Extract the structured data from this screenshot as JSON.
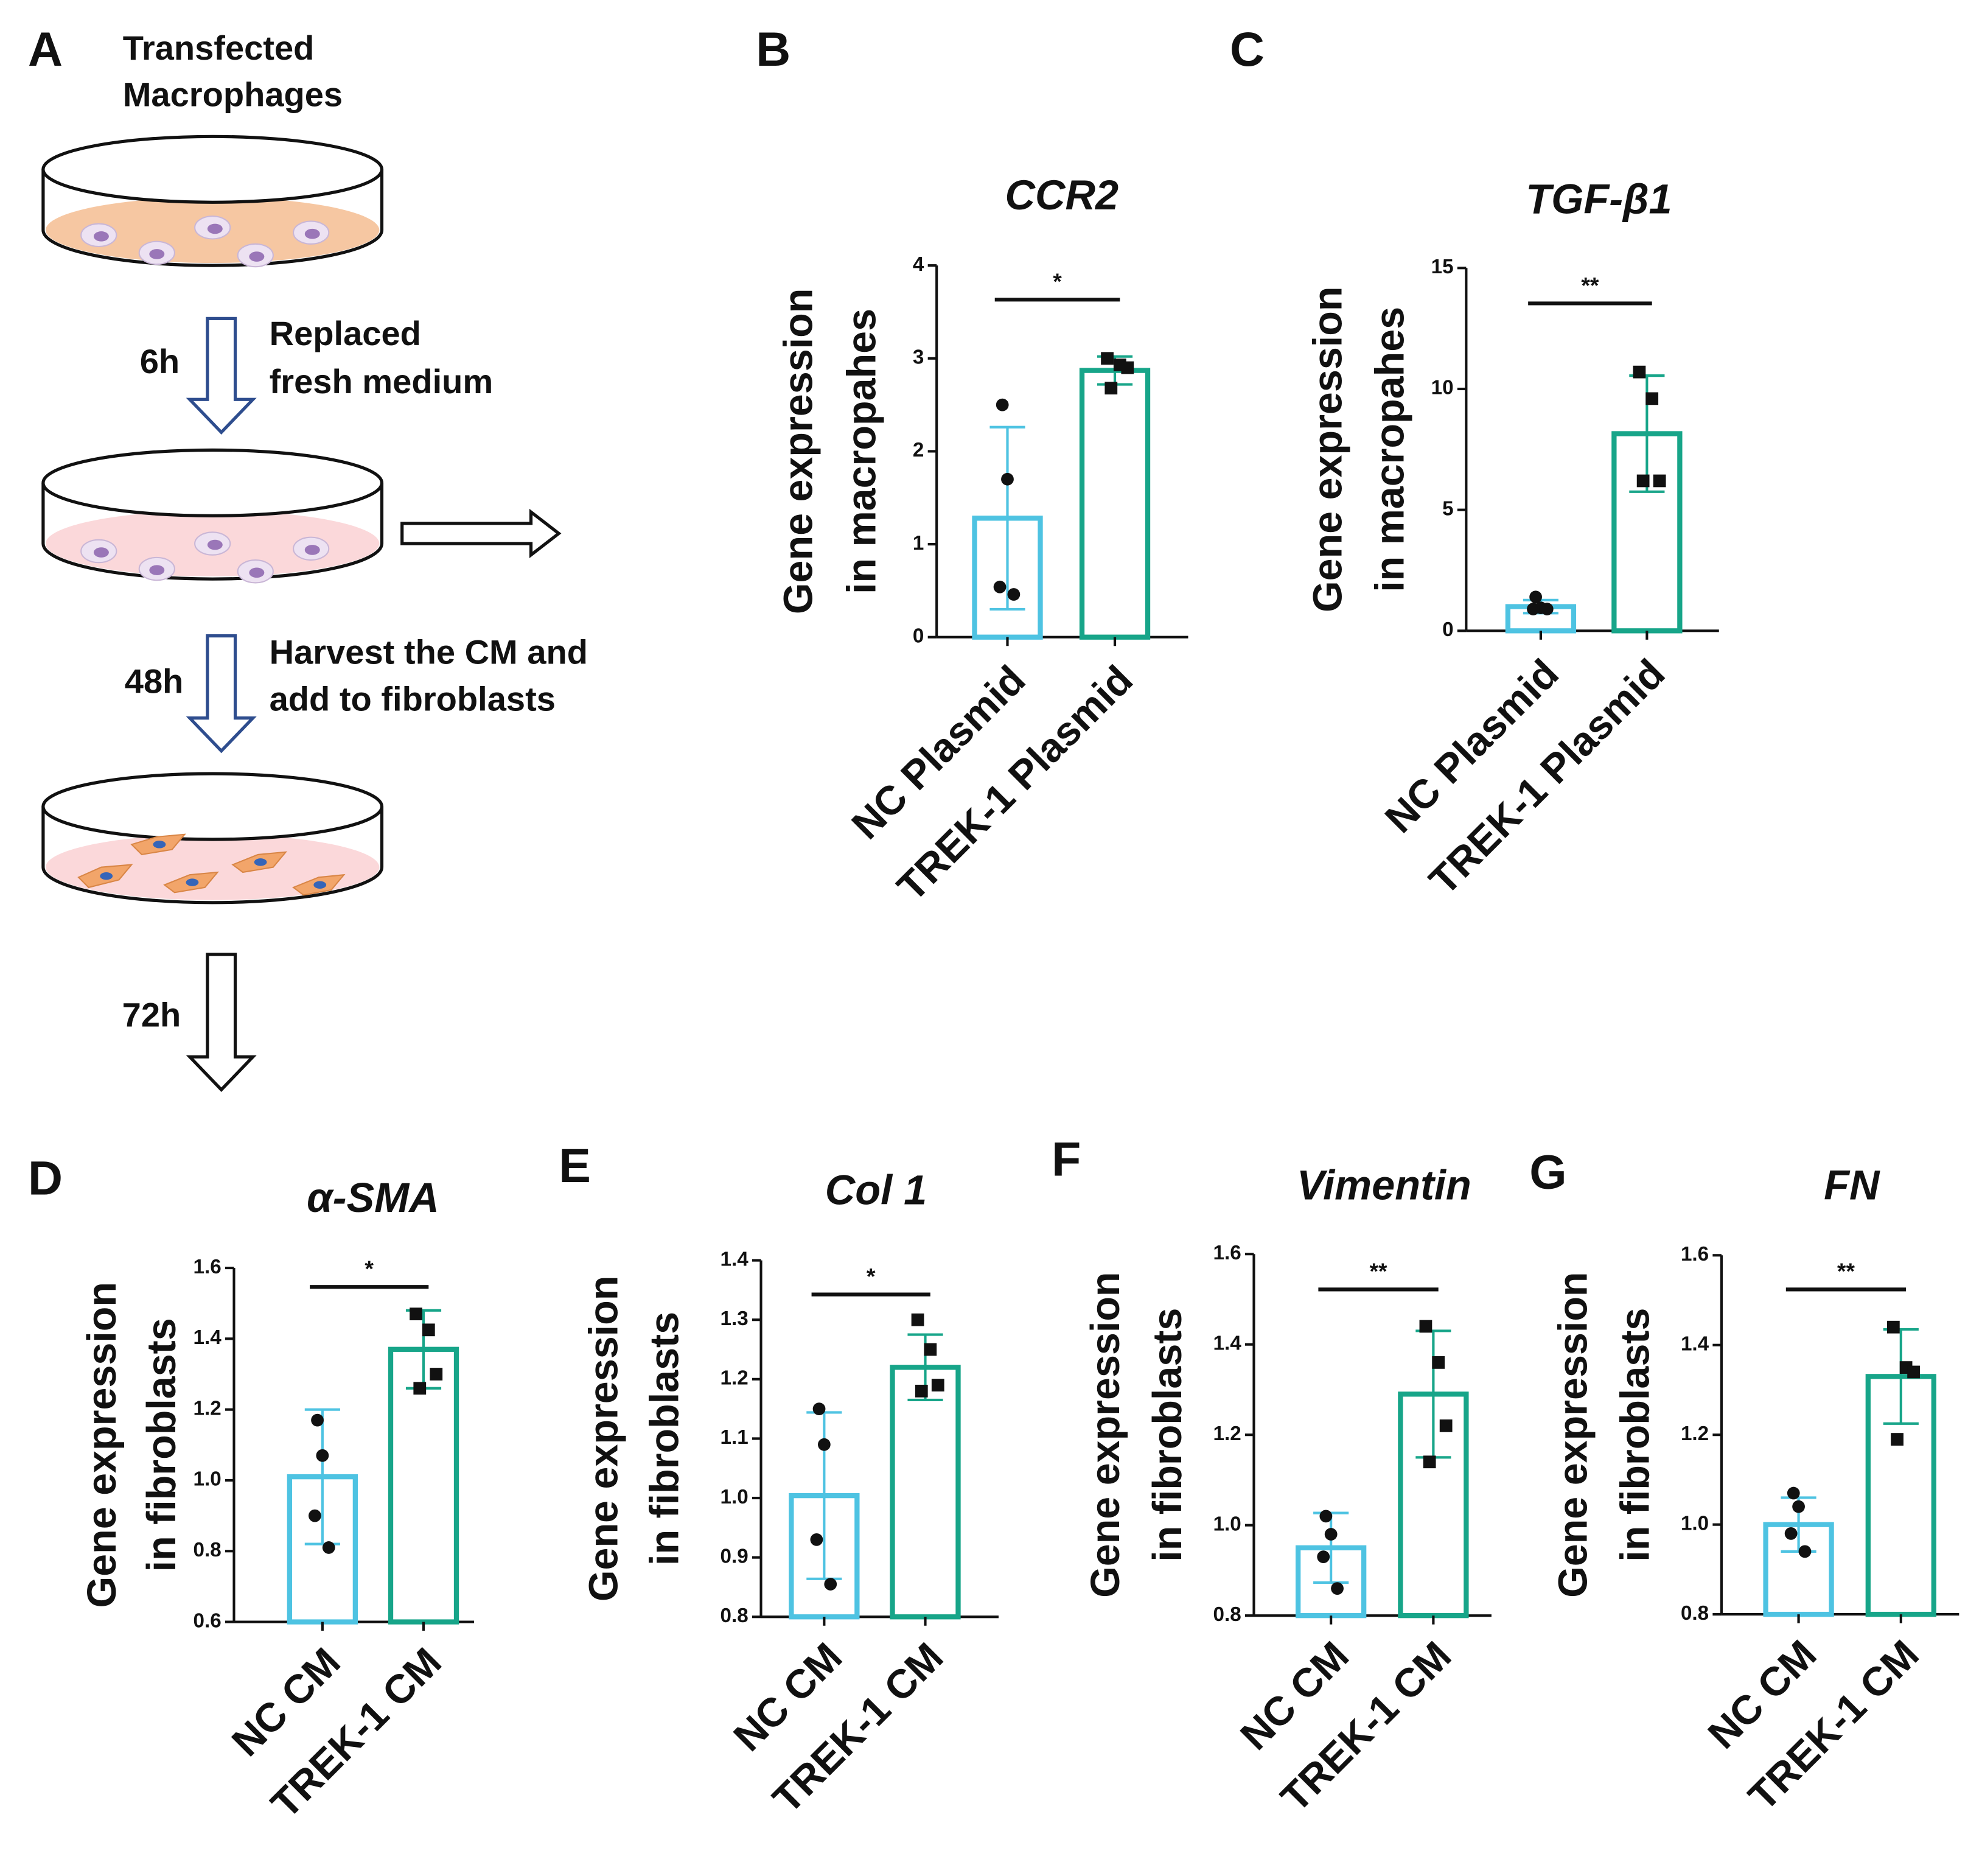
{
  "diagram": {
    "panel": "A",
    "start_label": [
      "Transfected",
      "Macrophages"
    ],
    "steps": [
      {
        "time": "6h",
        "text": [
          "Replaced",
          "fresh medium"
        ]
      },
      {
        "time": "48h",
        "text": [
          "Harvest the CM and",
          "add to fibroblasts"
        ]
      },
      {
        "time": "72h"
      }
    ]
  },
  "chart_data": [
    {
      "type": "bar",
      "panel": "B",
      "title": "CCR2",
      "ylabel": [
        "Gene expression",
        "in macropahes"
      ],
      "categories": [
        "NC Plasmid",
        "TREK-1 Plasmid"
      ],
      "colors": [
        "#4ec3e2",
        "#17a589"
      ],
      "markers": [
        "circle",
        "square"
      ],
      "values": [
        1.28,
        2.87
      ],
      "errors": [
        0.98,
        0.15
      ],
      "points": [
        [
          2.5,
          1.7,
          0.54,
          0.46
        ],
        [
          3.0,
          2.93,
          2.9,
          2.68
        ]
      ],
      "significance": "*",
      "ylim": [
        0,
        4
      ],
      "yticks": [
        0,
        1,
        2,
        3,
        4
      ]
    },
    {
      "type": "bar",
      "panel": "C",
      "title": "TGF-β1",
      "ylabel": [
        "Gene expression",
        "in macropahes"
      ],
      "categories": [
        "NC Plasmid",
        "TREK-1 Plasmid"
      ],
      "colors": [
        "#4ec3e2",
        "#17a589"
      ],
      "markers": [
        "circle",
        "square"
      ],
      "values": [
        1.0,
        8.15
      ],
      "errors": [
        0.27,
        2.4
      ],
      "points": [
        [
          1.4,
          0.95,
          0.9,
          0.9
        ],
        [
          10.7,
          9.6,
          6.2,
          6.2
        ]
      ],
      "significance": "**",
      "ylim": [
        0,
        15
      ],
      "yticks": [
        0,
        5,
        10,
        15
      ]
    },
    {
      "type": "bar",
      "panel": "D",
      "title": "α-SMA",
      "ylabel": [
        "Gene expression",
        "in fibroblasts"
      ],
      "categories": [
        "NC CM",
        "TREK-1 CM"
      ],
      "colors": [
        "#4ec3e2",
        "#17a589"
      ],
      "markers": [
        "circle",
        "square"
      ],
      "values": [
        1.01,
        1.37
      ],
      "errors": [
        0.19,
        0.11
      ],
      "points": [
        [
          1.17,
          1.07,
          0.9,
          0.81
        ],
        [
          1.47,
          1.425,
          1.3,
          1.26
        ]
      ],
      "significance": "*",
      "ylim": [
        0.6,
        1.6
      ],
      "yticks": [
        0.6,
        0.8,
        {
          "value": 1,
          "label": "1.0"
        },
        1.2,
        1.4,
        1.6
      ]
    },
    {
      "type": "bar",
      "panel": "E",
      "title": "Col 1",
      "ylabel": [
        "Gene expression",
        "in fibroblasts"
      ],
      "categories": [
        "NC CM",
        "TREK-1 CM"
      ],
      "colors": [
        "#4ec3e2",
        "#17a589"
      ],
      "markers": [
        "circle",
        "square"
      ],
      "values": [
        1.004,
        1.22
      ],
      "errors": [
        0.14,
        0.055
      ],
      "points": [
        [
          1.15,
          1.09,
          0.93,
          0.855
        ],
        [
          1.3,
          1.25,
          1.19,
          1.18
        ]
      ],
      "significance": "*",
      "ylim": [
        0.8,
        1.4
      ],
      "yticks": [
        0.8,
        0.9,
        {
          "value": 1,
          "label": "1.0"
        },
        1.1,
        1.2,
        1.3,
        1.4
      ]
    },
    {
      "type": "bar",
      "panel": "F",
      "title": "Vimentin",
      "ylabel": [
        "Gene expression",
        "in fibroblasts"
      ],
      "categories": [
        "NC CM",
        "TREK-1 CM"
      ],
      "colors": [
        "#4ec3e2",
        "#17a589"
      ],
      "markers": [
        "circle",
        "square"
      ],
      "values": [
        0.95,
        1.29
      ],
      "errors": [
        0.077,
        0.14
      ],
      "points": [
        [
          1.02,
          0.98,
          0.93,
          0.86
        ],
        [
          1.44,
          1.36,
          1.22,
          1.14
        ]
      ],
      "significance": "**",
      "ylim": [
        0.8,
        1.6
      ],
      "yticks": [
        0.8,
        {
          "value": 1,
          "label": "1.0"
        },
        1.2,
        1.4,
        1.6
      ]
    },
    {
      "type": "bar",
      "panel": "G",
      "title": "FN",
      "ylabel": [
        "Gene expression",
        "in fibroblasts"
      ],
      "categories": [
        "NC CM",
        "TREK-1 CM"
      ],
      "colors": [
        "#4ec3e2",
        "#17a589"
      ],
      "markers": [
        "circle",
        "square"
      ],
      "values": [
        1.0,
        1.33
      ],
      "errors": [
        0.06,
        0.105
      ],
      "points": [
        [
          1.07,
          1.04,
          0.98,
          0.94
        ],
        [
          1.44,
          1.35,
          1.34,
          1.19
        ]
      ],
      "significance": "**",
      "ylim": [
        0.8,
        1.6
      ],
      "yticks": [
        0.8,
        {
          "value": 1,
          "label": "1.0"
        },
        1.2,
        1.4,
        1.6
      ]
    }
  ]
}
